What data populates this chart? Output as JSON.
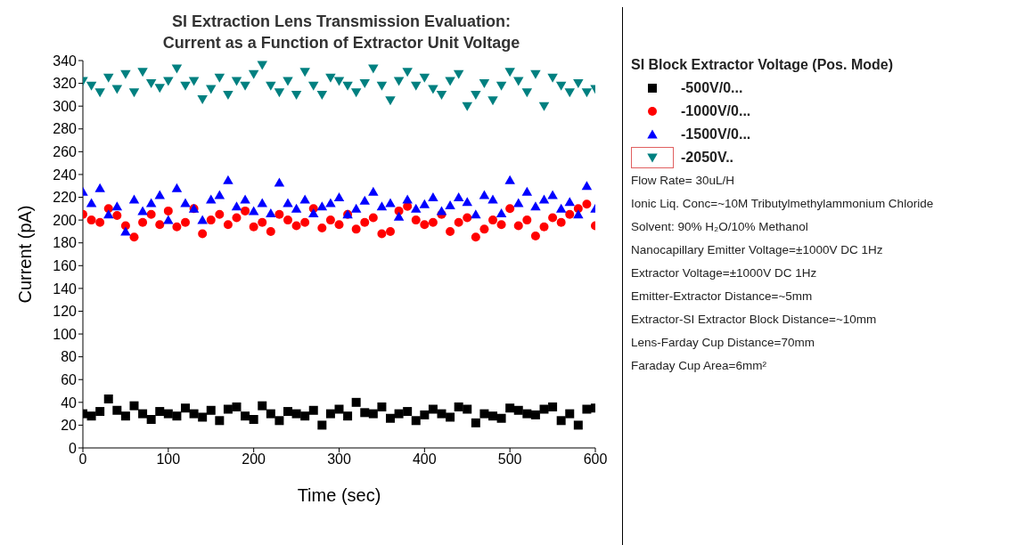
{
  "chart_data": {
    "type": "scatter",
    "title": "SI Extraction Lens Transmission Evaluation:\nCurrent as a Function of Extractor Unit Voltage",
    "xlabel": "Time (sec)",
    "ylabel": "Current (pA)",
    "legend_title": "SI Block Extractor Voltage (Pos. Mode)",
    "x": [
      0,
      10,
      20,
      30,
      40,
      50,
      60,
      70,
      80,
      90,
      100,
      110,
      120,
      130,
      140,
      150,
      160,
      170,
      180,
      190,
      200,
      210,
      220,
      230,
      240,
      250,
      260,
      270,
      280,
      290,
      300,
      310,
      320,
      330,
      340,
      350,
      360,
      370,
      380,
      390,
      400,
      410,
      420,
      430,
      440,
      450,
      460,
      470,
      480,
      490,
      500,
      510,
      520,
      530,
      540,
      550,
      560,
      570,
      580,
      590,
      600
    ],
    "series": [
      {
        "name": "-500V/0...",
        "color": "#000000",
        "marker": "square",
        "values": [
          30,
          28,
          32,
          43,
          33,
          28,
          37,
          30,
          25,
          32,
          30,
          28,
          35,
          30,
          27,
          33,
          24,
          34,
          36,
          28,
          25,
          37,
          30,
          24,
          32,
          30,
          28,
          33,
          20,
          30,
          34,
          28,
          40,
          31,
          30,
          36,
          26,
          30,
          32,
          24,
          29,
          34,
          30,
          27,
          36,
          34,
          22,
          30,
          28,
          26,
          35,
          33,
          30,
          29,
          34,
          36,
          24,
          30,
          20,
          34,
          35
        ]
      },
      {
        "name": "-1000V/0...",
        "color": "#ff0000",
        "marker": "circle",
        "values": [
          205,
          200,
          198,
          210,
          204,
          195,
          185,
          198,
          205,
          196,
          208,
          194,
          198,
          210,
          188,
          200,
          205,
          196,
          202,
          208,
          194,
          198,
          190,
          205,
          200,
          195,
          198,
          210,
          193,
          200,
          196,
          205,
          192,
          198,
          202,
          188,
          190,
          208,
          212,
          200,
          196,
          198,
          205,
          190,
          198,
          202,
          185,
          192,
          200,
          196,
          210,
          195,
          200,
          186,
          194,
          202,
          198,
          205,
          210,
          214,
          195
        ]
      },
      {
        "name": "-1500V/0...",
        "color": "#0000ff",
        "marker": "triangle",
        "values": [
          225,
          215,
          228,
          205,
          212,
          190,
          218,
          208,
          215,
          222,
          200,
          228,
          215,
          210,
          200,
          218,
          222,
          235,
          212,
          218,
          208,
          215,
          206,
          233,
          215,
          210,
          218,
          206,
          212,
          215,
          220,
          205,
          210,
          217,
          225,
          212,
          215,
          203,
          218,
          210,
          214,
          220,
          208,
          213,
          220,
          216,
          205,
          222,
          218,
          206,
          235,
          215,
          225,
          212,
          218,
          222,
          210,
          216,
          205,
          230,
          210
        ]
      },
      {
        "name": "-2050V..",
        "color": "#008080",
        "marker": "triangle-down",
        "values": [
          322,
          318,
          312,
          325,
          315,
          328,
          312,
          330,
          320,
          316,
          322,
          333,
          318,
          322,
          306,
          315,
          325,
          310,
          322,
          318,
          328,
          336,
          318,
          312,
          322,
          310,
          330,
          318,
          310,
          325,
          322,
          318,
          312,
          320,
          333,
          318,
          305,
          322,
          330,
          318,
          325,
          315,
          310,
          322,
          328,
          300,
          310,
          320,
          305,
          318,
          330,
          322,
          312,
          328,
          300,
          325,
          318,
          312,
          320,
          312,
          315
        ]
      }
    ],
    "xlim": [
      0,
      600
    ],
    "xticks": [
      0,
      100,
      200,
      300,
      400,
      500,
      600
    ],
    "ylim": [
      0,
      340
    ],
    "yticks": [
      0,
      20,
      40,
      60,
      80,
      100,
      120,
      140,
      160,
      180,
      200,
      220,
      240,
      260,
      280,
      300,
      320,
      340
    ],
    "grid": false,
    "legend": "right",
    "annotations": [
      "Flow Rate= 30uL/H",
      "Ionic Liq. Conc=~10M Tributylmethylammonium Chloride",
      "Solvent: 90% H₂O/10% Methanol",
      "Nanocapillary Emitter Voltage=±1000V DC 1Hz",
      "Extractor Voltage=±1000V DC 1Hz",
      "Emitter-Extractor Distance=~5mm",
      "Extractor-SI Extractor Block Distance=~10mm",
      "Lens-Farday Cup Distance=70mm",
      "Faraday Cup Area=6mm²"
    ]
  }
}
